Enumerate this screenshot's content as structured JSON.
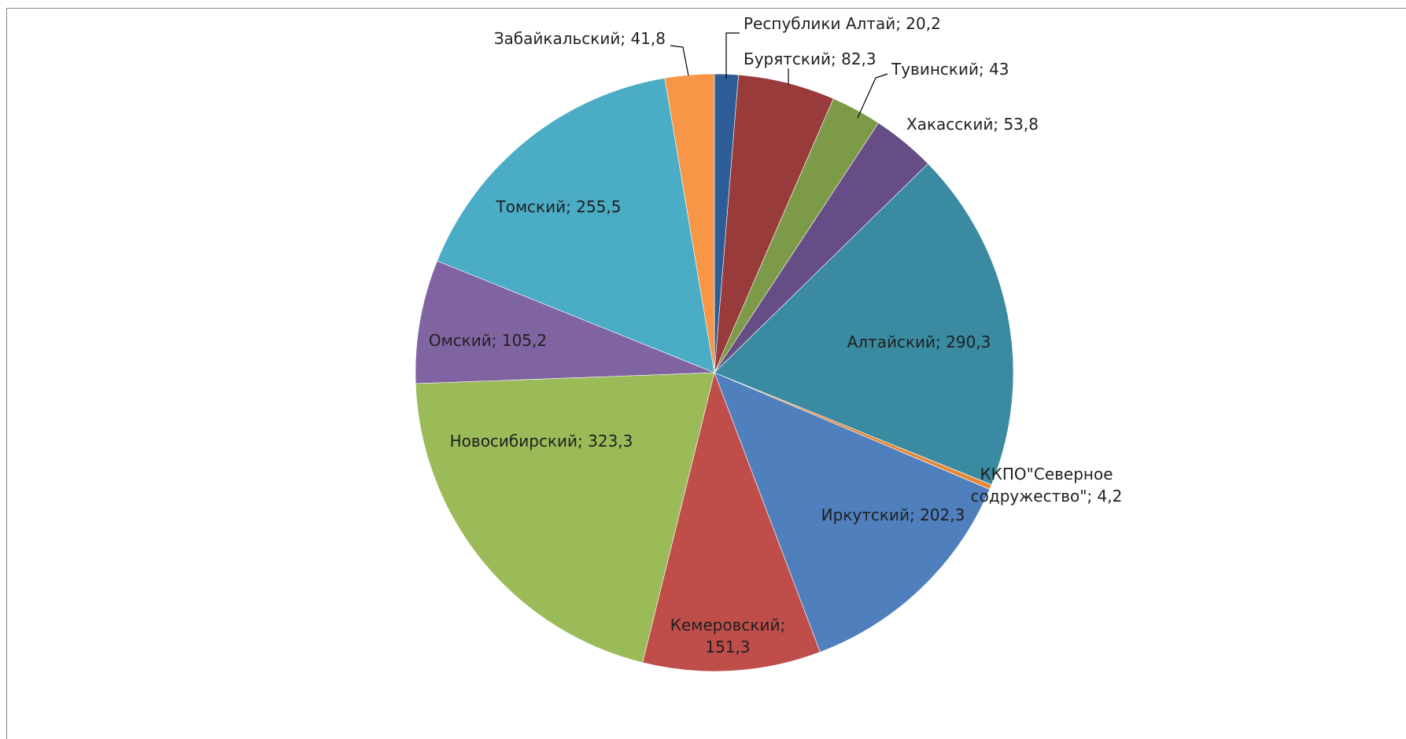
{
  "title_fragment": "",
  "chart_data": {
    "type": "pie",
    "title": "",
    "start_category": "Республики Алтай",
    "direction": "clockwise",
    "slices": [
      {
        "label": "Республики Алтай",
        "value": 20.2,
        "text": "Республики Алтай; 20,2",
        "color": "#2E5C96"
      },
      {
        "label": "Бурятский",
        "value": 82.3,
        "text": "Бурятский; 82,3",
        "color": "#983B3A"
      },
      {
        "label": "Тувинский",
        "value": 43,
        "text": "Тувинский; 43",
        "color": "#7C9A48"
      },
      {
        "label": "Хакасский",
        "value": 53.8,
        "text": "Хакасский; 53,8",
        "color": "#664D85"
      },
      {
        "label": "Алтайский",
        "value": 290.3,
        "text": "Алтайский; 290,3",
        "color": "#3A8BA2"
      },
      {
        "label": "ККПО\"Северное содружество\"",
        "value": 4.2,
        "text": "ККПО\"Северное содружество\"; 4,2",
        "color": "#E8883A"
      },
      {
        "label": "Иркутский",
        "value": 202.3,
        "text": "Иркутский; 202,3",
        "color": "#4F7FBD"
      },
      {
        "label": "Кемеровский",
        "value": 151.3,
        "text": "Кемеровский; 151,3",
        "color": "#BF4E4B"
      },
      {
        "label": "Новосибирский",
        "value": 323.3,
        "text": "Новосибирский; 323,3",
        "color": "#9BBB59"
      },
      {
        "label": "Омский",
        "value": 105.2,
        "text": "Омский; 105,2",
        "color": "#8064A2"
      },
      {
        "label": "Томский",
        "value": 255.5,
        "text": "Томский; 255,5",
        "color": "#4BACC6"
      },
      {
        "label": "Забайкальский",
        "value": 41.8,
        "text": "Забайкальский; 41,8",
        "color": "#F79646"
      }
    ]
  }
}
